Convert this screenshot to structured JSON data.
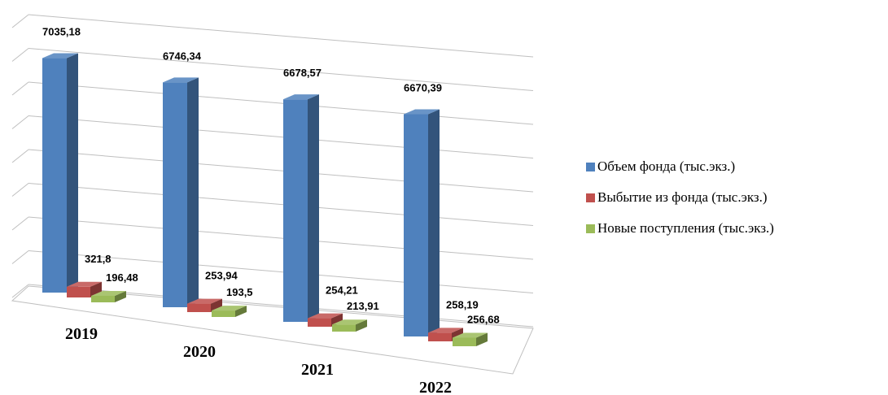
{
  "chart_data": {
    "type": "bar3d",
    "categories": [
      "2019",
      "2020",
      "2021",
      "2022"
    ],
    "series": [
      {
        "name": "Объем фонда (тыс.экз.)",
        "color": "#4f81bd",
        "values": [
          7035.18,
          6746.34,
          6678.57,
          6670.39
        ],
        "value_labels": [
          "7035,18",
          "6746,34",
          "6678,57",
          "6670,39"
        ]
      },
      {
        "name": "Выбытие из фонда (тыс.экз.)",
        "color": "#c0504d",
        "values": [
          321.8,
          253.94,
          254.21,
          258.19
        ],
        "value_labels": [
          "321,8",
          "253,94",
          "254,21",
          "258,19"
        ]
      },
      {
        "name": "Новые поступления (тыс.экз.)",
        "color": "#9bbb59",
        "values": [
          196.48,
          193.5,
          213.91,
          256.68
        ],
        "value_labels": [
          "196,48",
          "193,5",
          "213,91",
          "256,68"
        ]
      }
    ],
    "ylim": [
      0,
      8000
    ],
    "yticks": [
      0,
      1000,
      2000,
      3000,
      4000,
      5000,
      6000,
      7000,
      8000
    ],
    "grid": true,
    "legend": "right"
  }
}
